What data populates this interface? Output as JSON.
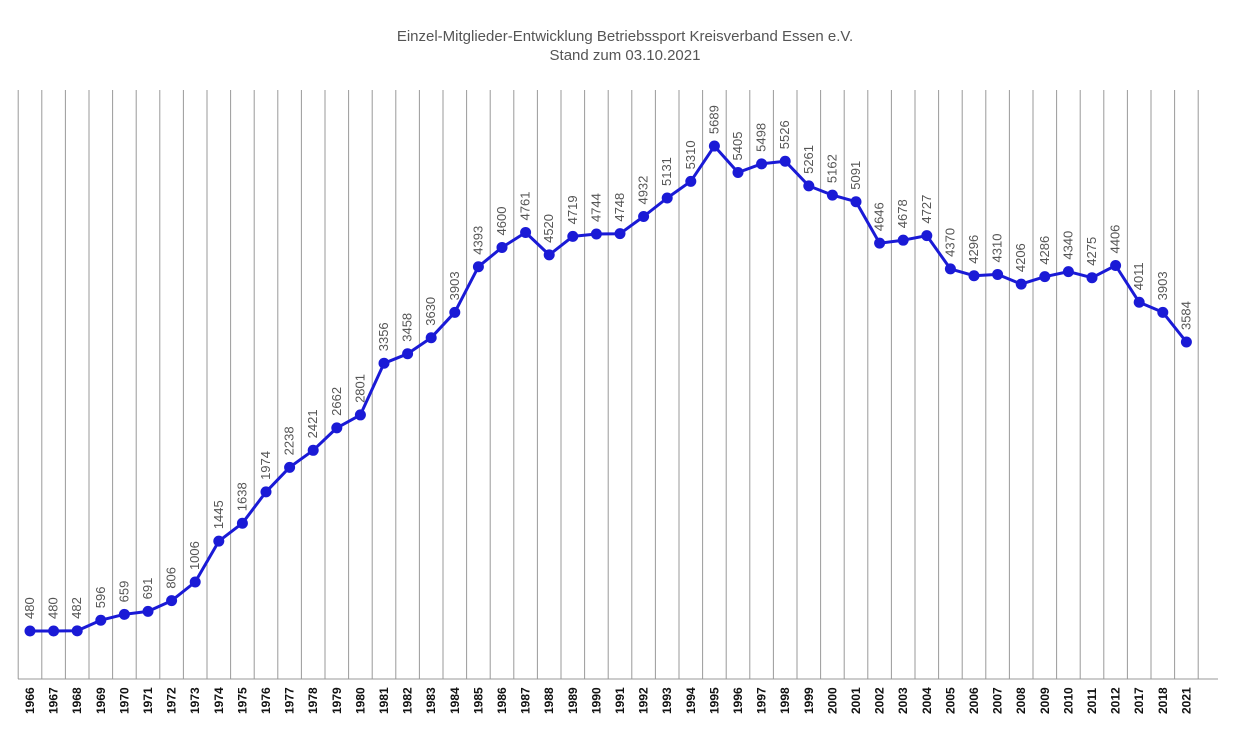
{
  "chart_data": {
    "type": "line",
    "title": "Einzel-Mitglieder-Entwicklung Betriebssport Kreisverband Essen e.V.",
    "subtitle": "Stand zum 03.10.2021",
    "xlabel": "",
    "ylabel": "",
    "grid": "vertical",
    "line_color": "#1a1ad6",
    "categories": [
      "1966",
      "1967",
      "1968",
      "1969",
      "1970",
      "1971",
      "1972",
      "1973",
      "1974",
      "1975",
      "1976",
      "1977",
      "1978",
      "1979",
      "1980",
      "1981",
      "1982",
      "1983",
      "1984",
      "1985",
      "1986",
      "1987",
      "1988",
      "1989",
      "1990",
      "1991",
      "1992",
      "1993",
      "1994",
      "1995",
      "1996",
      "1997",
      "1998",
      "1999",
      "2000",
      "2001",
      "2002",
      "2003",
      "2004",
      "2005",
      "2006",
      "2007",
      "2008",
      "2009",
      "2010",
      "2011",
      "2012",
      "2017",
      "2018",
      "2021"
    ],
    "values": [
      480,
      480,
      482,
      596,
      659,
      691,
      806,
      1006,
      1445,
      1638,
      1974,
      2238,
      2421,
      2662,
      2801,
      3356,
      3458,
      3630,
      3903,
      4393,
      4600,
      4761,
      4520,
      4719,
      4744,
      4748,
      4932,
      5131,
      5310,
      5689,
      5405,
      5498,
      5526,
      5261,
      5162,
      5091,
      4646,
      4678,
      4727,
      4370,
      4296,
      4310,
      4206,
      4286,
      4340,
      4275,
      4406,
      4011,
      3903,
      3584
    ],
    "ylim": [
      0,
      6000
    ]
  }
}
